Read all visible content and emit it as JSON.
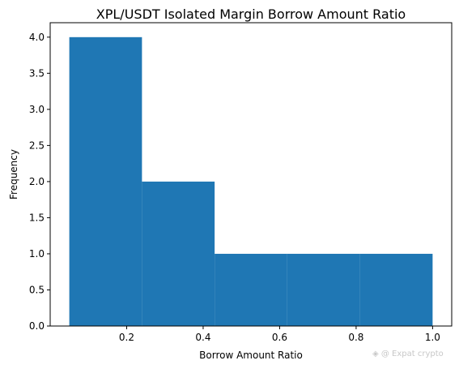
{
  "chart_data": {
    "type": "histogram",
    "title": "XPL/USDT Isolated Margin Borrow Amount Ratio",
    "xlabel": "Borrow Amount Ratio",
    "ylabel": "Frequency",
    "bins": [
      {
        "x0": 0.05,
        "x1": 0.24,
        "count": 4
      },
      {
        "x0": 0.24,
        "x1": 0.43,
        "count": 2
      },
      {
        "x0": 0.43,
        "x1": 0.62,
        "count": 1
      },
      {
        "x0": 0.62,
        "x1": 0.81,
        "count": 1
      },
      {
        "x0": 0.81,
        "x1": 1.0,
        "count": 1
      }
    ],
    "xlim": [
      0.0,
      1.05
    ],
    "ylim": [
      0.0,
      4.2
    ],
    "xticks": [
      0.2,
      0.4,
      0.6,
      0.8,
      1.0
    ],
    "xtick_labels": [
      "0.2",
      "0.4",
      "0.6",
      "0.8",
      "1.0"
    ],
    "yticks": [
      0.0,
      0.5,
      1.0,
      1.5,
      2.0,
      2.5,
      3.0,
      3.5,
      4.0
    ],
    "ytick_labels": [
      "0.0",
      "0.5",
      "1.0",
      "1.5",
      "2.0",
      "2.5",
      "3.0",
      "3.5",
      "4.0"
    ],
    "bar_color": "#1f77b4",
    "grid": false,
    "legend": "none"
  },
  "watermark": "◈ @ Expat crypto"
}
